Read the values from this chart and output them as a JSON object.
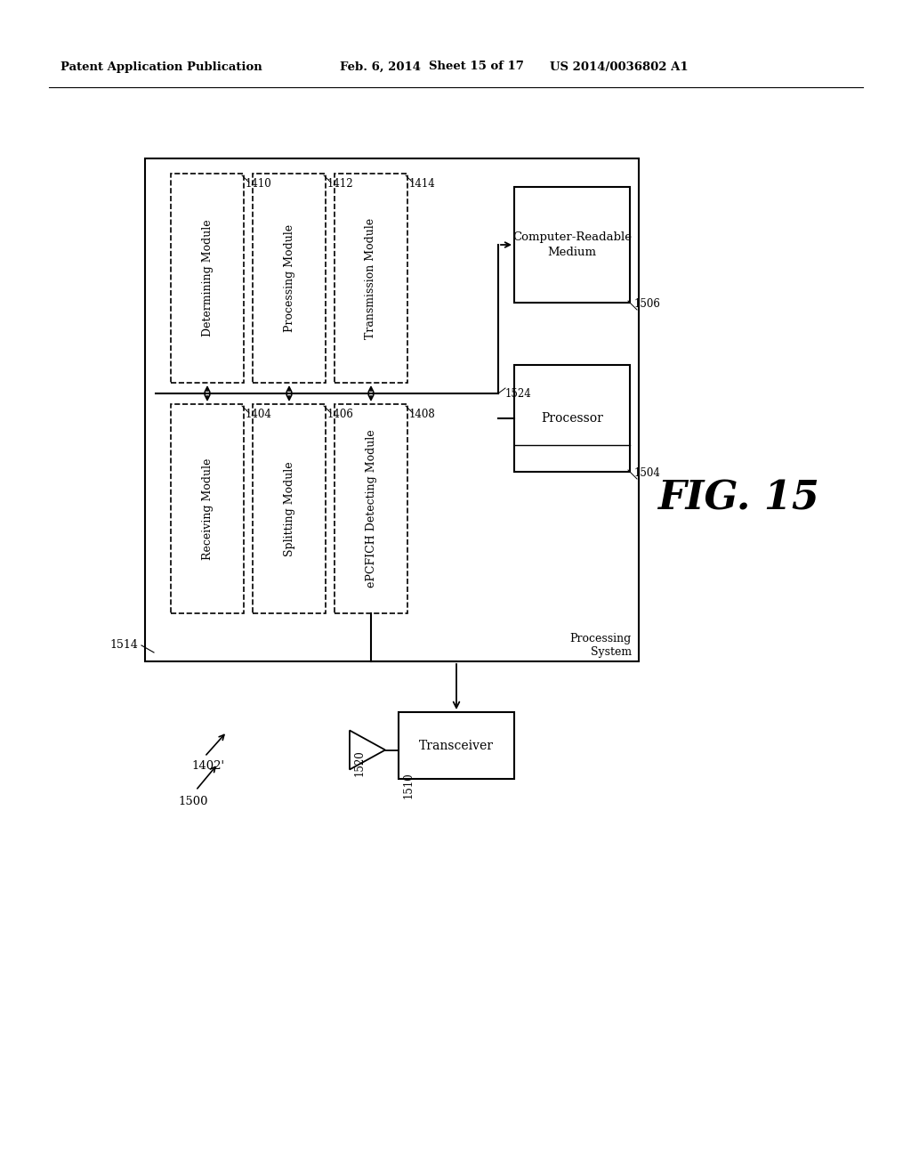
{
  "bg_color": "#ffffff",
  "header_text": "Patent Application Publication",
  "header_date": "Feb. 6, 2014",
  "header_sheet": "Sheet 15 of 17",
  "header_patent": "US 2014/0036802 A1",
  "fig_label": "FIG. 15",
  "label_1402": "1402'",
  "label_1500": "1500",
  "outer_box_label": "1514",
  "proc_sys_label": "Processing\nSystem",
  "modules_bottom": [
    {
      "label": "1404",
      "text": "Receiving Module"
    },
    {
      "label": "1406",
      "text": "Splitting Module"
    },
    {
      "label": "1408",
      "text": "ePCFICH Detecting Module"
    }
  ],
  "modules_top": [
    {
      "label": "1410",
      "text": "Determining Module"
    },
    {
      "label": "1412",
      "text": "Processing Module"
    },
    {
      "label": "1414",
      "text": "Transmission Module"
    }
  ],
  "processor_label": "1504",
  "processor_text": "Processor",
  "crm_label": "1506",
  "crm_text": "Computer-Readable\nMedium",
  "bus_label": "1524",
  "transceiver_label": "1510",
  "transceiver_text": "Transceiver",
  "antenna_label": "1520"
}
